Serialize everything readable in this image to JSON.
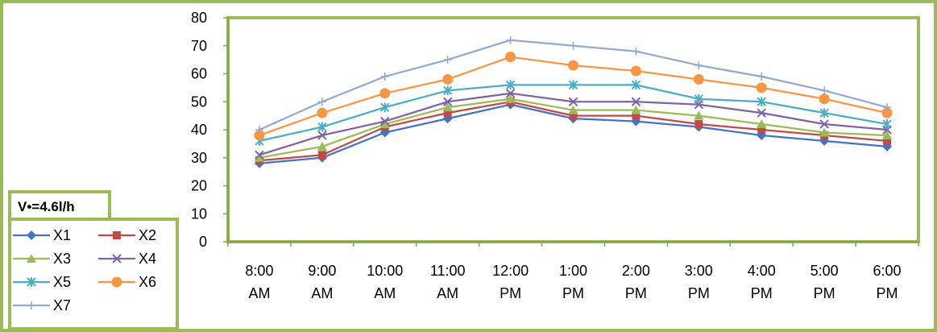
{
  "chart_data": {
    "type": "line",
    "annotation": "V•=4.6l/h",
    "categories": [
      [
        "8:00",
        "AM"
      ],
      [
        "9:00",
        "AM"
      ],
      [
        "10:00",
        "AM"
      ],
      [
        "11:00",
        "AM"
      ],
      [
        "12:00",
        "PM"
      ],
      [
        "1:00",
        "PM"
      ],
      [
        "2:00",
        "PM"
      ],
      [
        "3:00",
        "PM"
      ],
      [
        "4:00",
        "PM"
      ],
      [
        "5:00",
        "PM"
      ],
      [
        "6:00",
        "PM"
      ]
    ],
    "ylim": [
      0,
      80
    ],
    "yticks": [
      0,
      10,
      20,
      30,
      40,
      50,
      60,
      70,
      80
    ],
    "grid": false,
    "legend_position": "left",
    "series": [
      {
        "name": "X1",
        "color": "#4472c4",
        "marker": "diamond",
        "values": [
          28,
          30,
          39,
          44,
          49,
          44,
          43,
          41,
          38,
          36,
          34
        ]
      },
      {
        "name": "X2",
        "color": "#be4b48",
        "marker": "square",
        "values": [
          29,
          31,
          41,
          46,
          50,
          45,
          45,
          42,
          40,
          38,
          36
        ]
      },
      {
        "name": "X3",
        "color": "#9bbb59",
        "marker": "triangle",
        "values": [
          30,
          34,
          42,
          48,
          51,
          47,
          47,
          45,
          42,
          39,
          38
        ]
      },
      {
        "name": "X4",
        "color": "#7f63a2",
        "marker": "x",
        "values": [
          31,
          38,
          43,
          50,
          53,
          50,
          50,
          49,
          46,
          42,
          40
        ]
      },
      {
        "name": "X5",
        "color": "#4bacc6",
        "marker": "star",
        "values": [
          36,
          41,
          48,
          54,
          56,
          56,
          56,
          51,
          50,
          46,
          42
        ]
      },
      {
        "name": "X6",
        "color": "#f79646",
        "marker": "circle",
        "values": [
          38,
          46,
          53,
          58,
          66,
          63,
          61,
          58,
          55,
          51,
          46
        ]
      },
      {
        "name": "X7",
        "color": "#94a9d0",
        "marker": "plus",
        "values": [
          40,
          50,
          59,
          65,
          72,
          70,
          68,
          63,
          59,
          54,
          48
        ]
      }
    ]
  }
}
